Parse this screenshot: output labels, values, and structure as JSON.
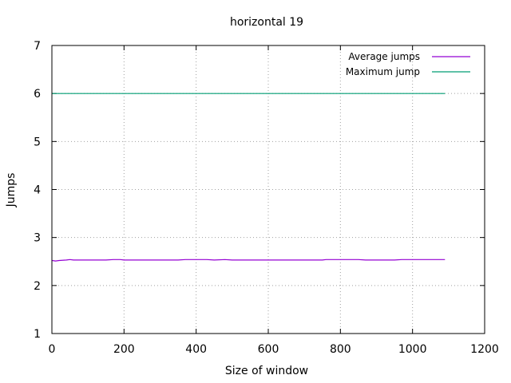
{
  "chart_data": {
    "type": "line",
    "title": "horizontal 19",
    "xlabel": "Size of window",
    "ylabel": "Jumps",
    "xlim": [
      0,
      1200
    ],
    "ylim": [
      1,
      7
    ],
    "xticks": [
      0,
      200,
      400,
      600,
      800,
      1000,
      1200
    ],
    "yticks": [
      1,
      2,
      3,
      4,
      5,
      6,
      7
    ],
    "grid": true,
    "legend_position": "top-right",
    "series": [
      {
        "name": "Average jumps",
        "color": "#9400d3",
        "x": [
          1,
          10,
          20,
          40,
          50,
          60,
          100,
          150,
          170,
          190,
          200,
          250,
          300,
          350,
          370,
          400,
          430,
          450,
          480,
          500,
          550,
          600,
          650,
          700,
          750,
          760,
          800,
          850,
          870,
          900,
          950,
          970,
          1000,
          1050,
          1090
        ],
        "y": [
          2.52,
          2.51,
          2.52,
          2.53,
          2.54,
          2.53,
          2.53,
          2.53,
          2.54,
          2.54,
          2.53,
          2.53,
          2.53,
          2.53,
          2.54,
          2.54,
          2.54,
          2.53,
          2.54,
          2.53,
          2.53,
          2.53,
          2.53,
          2.53,
          2.53,
          2.54,
          2.54,
          2.54,
          2.53,
          2.53,
          2.53,
          2.54,
          2.54,
          2.54,
          2.54
        ]
      },
      {
        "name": "Maximum jump",
        "color": "#009e73",
        "x": [
          1,
          1090
        ],
        "y": [
          6,
          6
        ]
      }
    ]
  }
}
